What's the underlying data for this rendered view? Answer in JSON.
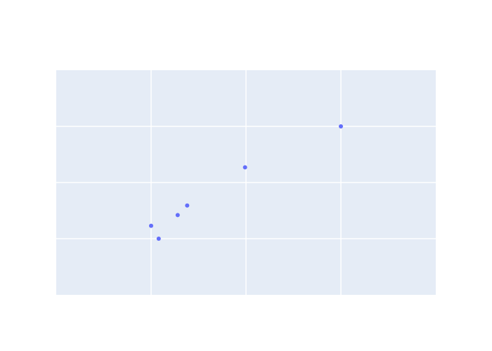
{
  "chart_data": {
    "type": "scatter",
    "title": "",
    "xlabel": "",
    "ylabel": "",
    "grid": true,
    "legend": "none",
    "xlim": [
      -1,
      3
    ],
    "ylim": [
      -1,
      3
    ],
    "x_gridlines": [
      0,
      1,
      2
    ],
    "y_gridlines": [
      0,
      1,
      2
    ],
    "x": [
      0.0,
      0.08,
      0.28,
      0.38,
      0.99,
      2.0
    ],
    "y": [
      0.23,
      0.0,
      0.42,
      0.59,
      1.27,
      2.0
    ],
    "colors": {
      "plot_background": "#e5ecf6",
      "gridline": "#ffffff",
      "marker": "#636efa"
    }
  }
}
